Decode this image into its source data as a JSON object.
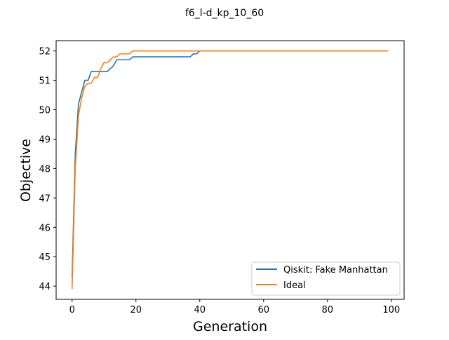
{
  "chart_data": {
    "type": "line",
    "title": "f6_l-d_kp_10_60",
    "xlabel": "Generation",
    "ylabel": "Objective",
    "xlim": [
      -5,
      104
    ],
    "ylim": [
      43.55,
      52.35
    ],
    "xticks": [
      0,
      20,
      40,
      60,
      80,
      100
    ],
    "yticks": [
      44,
      45,
      46,
      47,
      48,
      49,
      50,
      51,
      52
    ],
    "grid": false,
    "legend_position": "lower right",
    "series": [
      {
        "name": "Qiskit: Fake Manhattan",
        "color": "#1f77b4",
        "x": [
          0,
          1,
          2,
          3,
          4,
          5,
          6,
          7,
          8,
          9,
          10,
          11,
          12,
          13,
          14,
          15,
          16,
          17,
          18,
          19,
          20,
          21,
          22,
          23,
          24,
          25,
          26,
          27,
          28,
          29,
          30,
          31,
          32,
          33,
          34,
          35,
          36,
          37,
          38,
          39,
          40,
          99
        ],
        "y": [
          44.3,
          48.5,
          50.2,
          50.6,
          51.0,
          51.0,
          51.3,
          51.3,
          51.3,
          51.3,
          51.3,
          51.3,
          51.4,
          51.5,
          51.7,
          51.7,
          51.7,
          51.7,
          51.7,
          51.8,
          51.8,
          51.8,
          51.8,
          51.8,
          51.8,
          51.8,
          51.8,
          51.8,
          51.8,
          51.8,
          51.8,
          51.8,
          51.8,
          51.8,
          51.8,
          51.8,
          51.8,
          51.8,
          51.9,
          51.9,
          52.0,
          52.0
        ]
      },
      {
        "name": "Ideal",
        "color": "#ff7f0e",
        "x": [
          0,
          1,
          2,
          3,
          4,
          5,
          6,
          7,
          8,
          9,
          10,
          11,
          12,
          13,
          14,
          15,
          16,
          17,
          18,
          19,
          99
        ],
        "y": [
          43.9,
          48.0,
          49.8,
          50.4,
          50.8,
          50.9,
          50.9,
          51.1,
          51.1,
          51.4,
          51.6,
          51.6,
          51.7,
          51.8,
          51.8,
          51.9,
          51.9,
          51.9,
          51.9,
          52.0,
          52.0
        ]
      }
    ]
  }
}
